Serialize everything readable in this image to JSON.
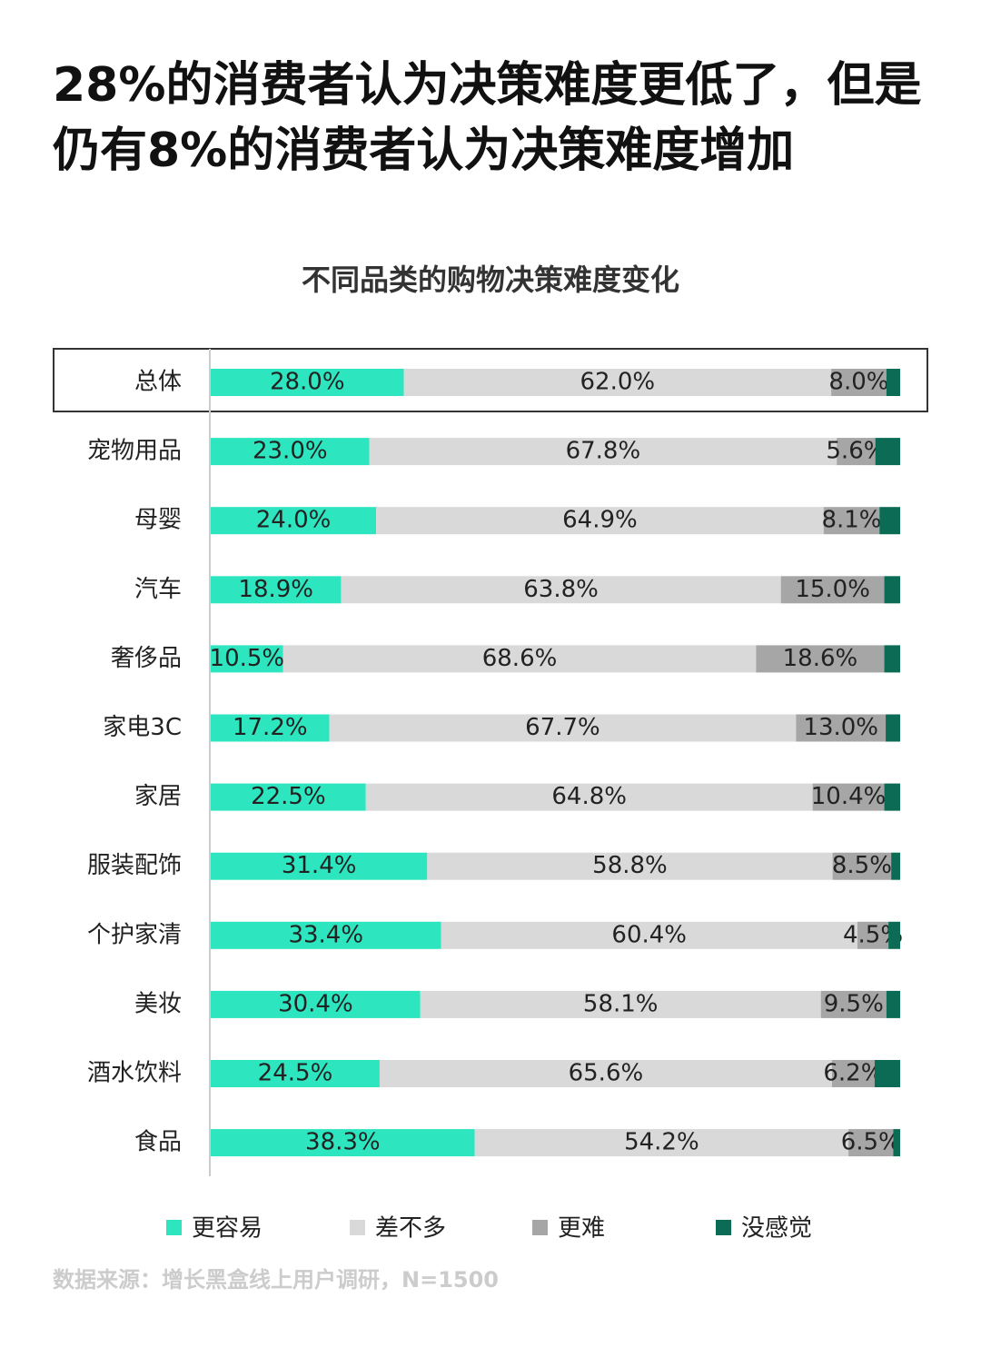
{
  "chart_data": {
    "type": "stacked-bar-horizontal",
    "title": "28%的消费者认为决策难度更低了，但是仍有8%的消费者认为决策难度增加",
    "subtitle": "不同品类的购物决策难度变化",
    "source": "数据来源：增长黑盒线上用户调研，N=1500",
    "categories": [
      "总体",
      "宠物用品",
      "母婴",
      "汽车",
      "奢侈品",
      "家电3C",
      "家居",
      "服装配饰",
      "个护家清",
      "美妆",
      "酒水饮料",
      "食品"
    ],
    "xlim": [
      0,
      100
    ],
    "series": [
      {
        "name": "更容易",
        "color": "#2de6c0",
        "values": [
          28.0,
          23.0,
          24.0,
          18.9,
          10.5,
          17.2,
          22.5,
          31.4,
          33.4,
          30.4,
          24.5,
          38.3
        ],
        "value_labels": [
          "28.0%",
          "23.0%",
          "24.0%",
          "18.9%",
          "10.5%",
          "17.2%",
          "22.5%",
          "31.4%",
          "33.4%",
          "30.4%",
          "24.5%",
          "38.3%"
        ]
      },
      {
        "name": "差不多",
        "color": "#d9d9d9",
        "values": [
          62.0,
          67.8,
          64.9,
          63.8,
          68.6,
          67.7,
          64.8,
          58.8,
          60.4,
          58.1,
          65.6,
          54.2
        ],
        "value_labels": [
          "62.0%",
          "67.8%",
          "64.9%",
          "63.8%",
          "68.6%",
          "67.7%",
          "64.8%",
          "58.8%",
          "60.4%",
          "58.1%",
          "65.6%",
          "54.2%"
        ]
      },
      {
        "name": "更难",
        "color": "#a6a6a6",
        "values": [
          8.0,
          5.6,
          8.1,
          15.0,
          18.6,
          13.0,
          10.4,
          8.5,
          4.5,
          9.5,
          6.2,
          6.5
        ],
        "value_labels": [
          "8.0%",
          "5.6%",
          "8.1%",
          "15.0%",
          "18.6%",
          "13.0%",
          "10.4%",
          "8.5%",
          "4.5%",
          "9.5%",
          "6.2%",
          "6.5%"
        ]
      },
      {
        "name": "没感觉",
        "color": "#0b6b54",
        "values": [
          2.0,
          3.6,
          3.0,
          2.3,
          2.3,
          2.1,
          2.3,
          1.3,
          1.7,
          2.0,
          3.7,
          1.0
        ]
      }
    ]
  }
}
